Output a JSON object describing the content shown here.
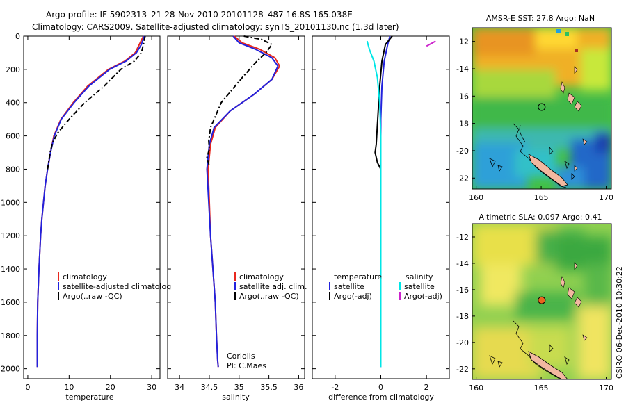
{
  "header": {
    "line1": "Argo profile: IF 5902313_21 28-Nov-2010 20101128_487 16.8S 165.038E",
    "line2": "Climatology: CARS2009. Satellite-adjusted climatology: synTS_20101130.nc (1.3d later)"
  },
  "side_label": "CSIRO 06-Dec-2010 10:30:22",
  "colors": {
    "climatology": "#e8281e",
    "satellite": "#2222dd",
    "argo": "#000000",
    "satellite_salinity": "#00e6e6",
    "argo_adj_salinity": "#cc22cc"
  },
  "chart_data": [
    {
      "type": "line",
      "xlabel": "temperature",
      "ylabel": "",
      "xlim": [
        -1,
        32
      ],
      "ylim": [
        2060,
        0
      ],
      "xticks": [
        "0",
        "10",
        "20",
        "30"
      ],
      "yticks": [
        "0",
        "200",
        "400",
        "600",
        "800",
        "1000",
        "1200",
        "1400",
        "1600",
        "1800",
        "2000"
      ],
      "legend": [
        "climatology",
        "satellite-adjusted climatolog",
        "Argo(..raw -QC)"
      ],
      "legend_placement": "lower-right",
      "series": [
        {
          "name": "climatology",
          "color": "#e8281e",
          "x": [
            28.0,
            27.0,
            26.0,
            23.5,
            19.5,
            14.5,
            11.0,
            8.0,
            6.3,
            5.5,
            4.8,
            4.2,
            3.8,
            3.4,
            3.1,
            2.9,
            2.7,
            2.55,
            2.4,
            2.3,
            2.3
          ],
          "y": [
            0,
            50,
            100,
            150,
            200,
            300,
            400,
            500,
            600,
            700,
            800,
            900,
            1000,
            1100,
            1200,
            1300,
            1400,
            1500,
            1600,
            1800,
            1990
          ]
        },
        {
          "name": "satellite",
          "color": "#2222dd",
          "x": [
            28.2,
            27.5,
            26.3,
            23.8,
            19.8,
            14.8,
            11.2,
            8.1,
            6.4,
            5.5,
            4.8,
            4.2,
            3.8,
            3.4,
            3.1,
            2.9,
            2.7,
            2.55,
            2.4,
            2.3,
            2.3
          ],
          "y": [
            0,
            50,
            100,
            150,
            200,
            300,
            400,
            500,
            600,
            700,
            800,
            900,
            1000,
            1100,
            1200,
            1300,
            1400,
            1500,
            1600,
            1800,
            1990
          ]
        },
        {
          "name": "Argo(..raw -QC)",
          "color": "#000000",
          "x": [
            28.4,
            28.0,
            27.5,
            25.8,
            22.5,
            18.5,
            13.8,
            10.0,
            7.3,
            6.0,
            5.4,
            4.8
          ],
          "y": [
            0,
            50,
            100,
            150,
            200,
            300,
            400,
            500,
            580,
            640,
            700,
            800
          ]
        }
      ]
    },
    {
      "type": "line",
      "xlabel": "salinity",
      "ylabel": "",
      "xlim": [
        33.8,
        36.1
      ],
      "ylim": [
        2060,
        0
      ],
      "xticks": [
        "34",
        "34.5",
        "35",
        "35.5",
        "36"
      ],
      "legend": [
        "climatology",
        "satellite adj. clim.",
        "Argo(..raw -QC)"
      ],
      "legend_placement": "lower-right",
      "annotation": [
        "Coriolis",
        "PI: C.Maes"
      ],
      "series": [
        {
          "name": "climatology",
          "color": "#e8281e",
          "x": [
            34.92,
            35.05,
            35.35,
            35.6,
            35.68,
            35.55,
            35.25,
            34.85,
            34.6,
            34.52,
            34.48,
            34.5,
            34.52,
            34.56,
            34.6,
            34.62,
            34.64,
            34.65
          ],
          "y": [
            0,
            40,
            80,
            130,
            180,
            260,
            350,
            450,
            550,
            650,
            800,
            1000,
            1200,
            1400,
            1600,
            1800,
            1950,
            1990
          ]
        },
        {
          "name": "satellite",
          "color": "#2222dd",
          "x": [
            34.9,
            35.0,
            35.28,
            35.55,
            35.65,
            35.55,
            35.25,
            34.85,
            34.58,
            34.5,
            34.46,
            34.49,
            34.52,
            34.56,
            34.6,
            34.62,
            34.64,
            34.65
          ],
          "y": [
            0,
            40,
            80,
            130,
            180,
            260,
            350,
            450,
            550,
            650,
            800,
            1000,
            1200,
            1400,
            1600,
            1800,
            1950,
            1990
          ]
        },
        {
          "name": "Argo(..raw -QC)",
          "color": "#000000",
          "x": [
            35.08,
            35.38,
            35.55,
            35.45,
            35.3,
            35.05,
            34.7,
            34.52,
            34.49,
            34.5,
            34.46,
            34.5
          ],
          "y": [
            0,
            20,
            50,
            100,
            150,
            250,
            400,
            550,
            630,
            680,
            730,
            780
          ]
        }
      ]
    },
    {
      "type": "line",
      "xlabel": "difference from climatology",
      "ylabel": "",
      "xlim": [
        -3,
        3
      ],
      "ylim": [
        2060,
        0
      ],
      "xticks": [
        "-2",
        "0",
        "2"
      ],
      "legend": [
        "temperature",
        "satellite",
        "Argo(-adj)",
        "salinity",
        "satellite",
        "Argo(-adj)"
      ],
      "legend_placement": "lower-center",
      "series": [
        {
          "name": "satellite",
          "color": "#2222dd",
          "x": [
            0.4,
            0.3,
            0.15,
            0.05,
            0.0,
            0.0,
            0.0,
            0.0,
            0.0,
            0.0
          ],
          "y": [
            0,
            50,
            150,
            300,
            500,
            800,
            1200,
            1600,
            1800,
            1990
          ]
        },
        {
          "name": "Argo(-adj)",
          "color": "#000000",
          "x": [
            0.5,
            0.2,
            0.05,
            -0.05,
            -0.2,
            -0.25,
            -0.15,
            0.0
          ],
          "y": [
            0,
            50,
            150,
            300,
            650,
            700,
            760,
            800
          ]
        },
        {
          "name": "satellite",
          "color": "#00e6e6",
          "x": [
            -0.6,
            -0.5,
            -0.3,
            -0.15,
            -0.05,
            0.0,
            0.0,
            0.0
          ],
          "y": [
            30,
            80,
            150,
            250,
            400,
            600,
            1000,
            1990
          ]
        },
        {
          "name": "Argo(-adj)",
          "color": "#cc22cc",
          "x": [
            2.0,
            2.4
          ],
          "y": [
            60,
            30
          ]
        }
      ]
    },
    {
      "type": "heatmap",
      "title": "AMSR-E SST: 27.8 Argo: NaN",
      "xlim": [
        159.7,
        170.4
      ],
      "ylim": [
        -22.8,
        -11.0
      ],
      "xticks": [
        "160",
        "165",
        "170"
      ],
      "yticks": [
        "-12",
        "-14",
        "-16",
        "-18",
        "-20",
        "-22"
      ],
      "marker": {
        "lon": 165.04,
        "lat": -16.8,
        "filled": false
      }
    },
    {
      "type": "heatmap",
      "title": "Altimetric SLA: 0.097 Argo: 0.41",
      "xlim": [
        159.7,
        170.4
      ],
      "ylim": [
        -22.8,
        -11.0
      ],
      "xticks": [
        "160",
        "165",
        "170"
      ],
      "yticks": [
        "-12",
        "-14",
        "-16",
        "-18",
        "-20",
        "-22"
      ],
      "marker": {
        "lon": 165.04,
        "lat": -16.8,
        "filled": true,
        "color": "#e8641e"
      }
    }
  ]
}
